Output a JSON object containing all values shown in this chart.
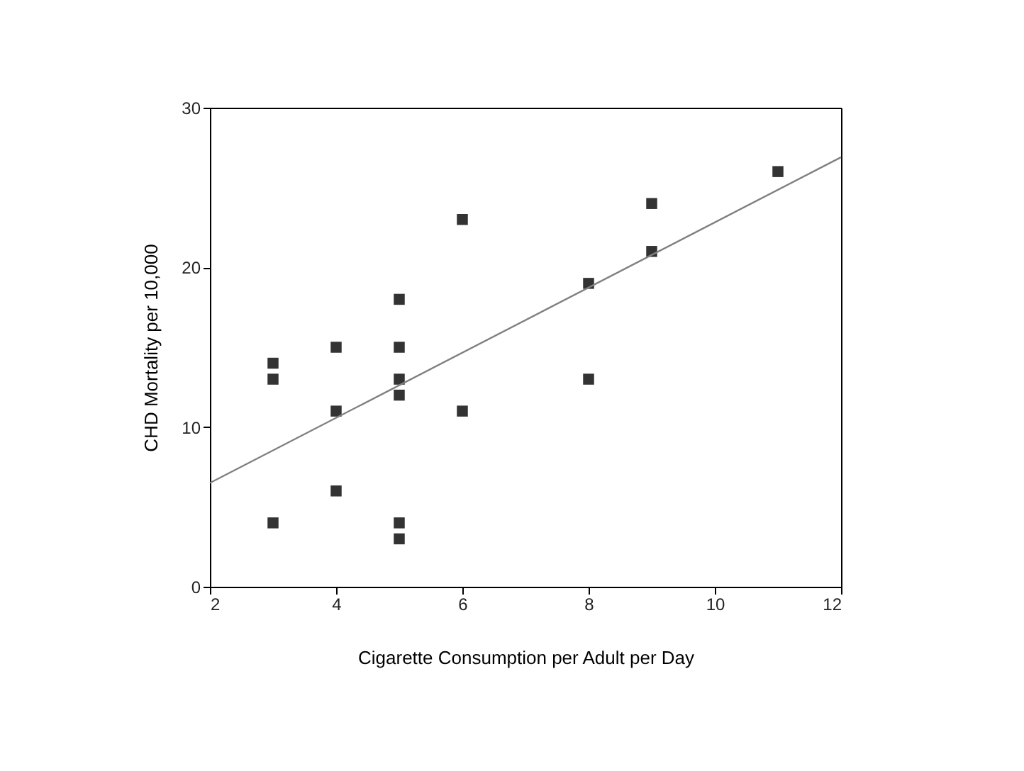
{
  "chart_data": {
    "type": "scatter",
    "xlabel": "Cigarette Consumption per Adult per Day",
    "ylabel": "CHD Mortality per 10,000",
    "xlim": [
      2,
      12
    ],
    "ylim": [
      0,
      30
    ],
    "xticks": [
      2,
      4,
      6,
      8,
      10,
      12
    ],
    "yticks": [
      0,
      10,
      20,
      30
    ],
    "grid": false,
    "series": [
      {
        "color": "#333333",
        "marker": "square",
        "x": [
          3,
          3,
          3,
          4,
          4,
          4,
          5,
          5,
          5,
          5,
          5,
          5,
          6,
          6,
          8,
          8,
          9,
          9,
          11
        ],
        "values": [
          14,
          13,
          4,
          15,
          11,
          6,
          18,
          15,
          13,
          12,
          4,
          3,
          23,
          11,
          19,
          13,
          24,
          21,
          26
        ]
      },
      {
        "type": "line",
        "color": "#808080",
        "line_style": "solid",
        "marker": "none",
        "x": [
          2,
          12
        ],
        "values": [
          6.5,
          26.9
        ]
      }
    ]
  }
}
